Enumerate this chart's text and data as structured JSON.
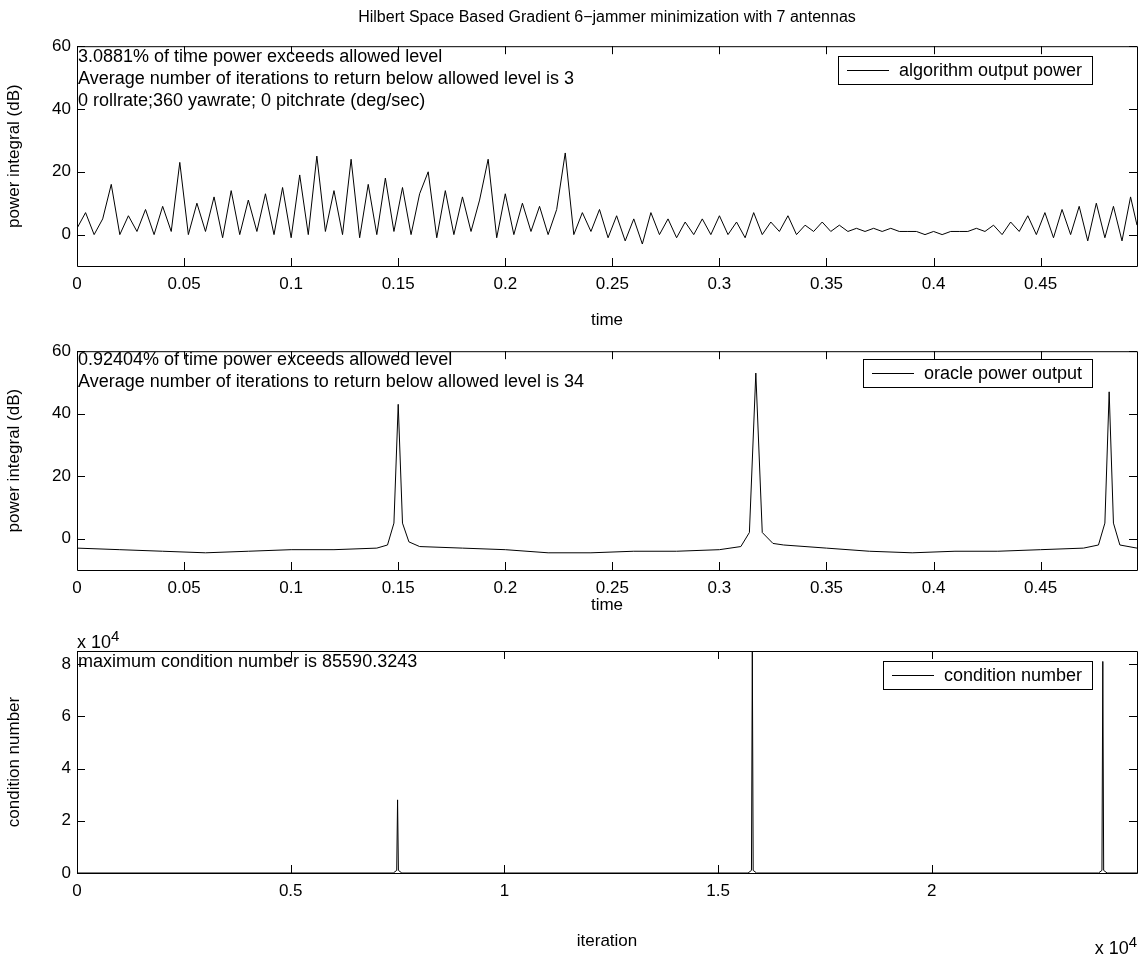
{
  "chart_data": [
    {
      "type": "line",
      "title": "Hilbert Space Based Gradient 6−jammer minimization with 7 antennas",
      "xlabel": "time",
      "ylabel": "power integral (dB)",
      "annotations": [
        "3.0881% of time power exceeds allowed level",
        "Average number of iterations to return below allowed level is 3",
        "0  rollrate;360  yawrate; 0  pitchrate (deg/sec)"
      ],
      "xlim": [
        0,
        0.495
      ],
      "xticks": [
        0,
        0.05,
        0.1,
        0.15,
        0.2,
        0.25,
        0.3,
        0.35,
        0.4,
        0.45
      ],
      "ylim": [
        -10,
        60
      ],
      "yticks": [
        0,
        20,
        40,
        60
      ],
      "legend": "top right",
      "marker": "none",
      "line_style": "solid",
      "series": [
        {
          "name": "algorithm output power",
          "color": "#000000",
          "x": [
            0,
            0.004,
            0.008,
            0.012,
            0.016,
            0.02,
            0.024,
            0.028,
            0.032,
            0.036,
            0.04,
            0.044,
            0.048,
            0.052,
            0.056,
            0.06,
            0.064,
            0.068,
            0.072,
            0.076,
            0.08,
            0.084,
            0.088,
            0.092,
            0.096,
            0.1,
            0.104,
            0.108,
            0.112,
            0.116,
            0.12,
            0.124,
            0.128,
            0.132,
            0.136,
            0.14,
            0.144,
            0.148,
            0.152,
            0.156,
            0.16,
            0.164,
            0.168,
            0.172,
            0.176,
            0.18,
            0.184,
            0.188,
            0.192,
            0.196,
            0.2,
            0.204,
            0.208,
            0.212,
            0.216,
            0.22,
            0.224,
            0.228,
            0.232,
            0.236,
            0.24,
            0.244,
            0.248,
            0.252,
            0.256,
            0.26,
            0.264,
            0.268,
            0.272,
            0.276,
            0.28,
            0.284,
            0.288,
            0.292,
            0.296,
            0.3,
            0.304,
            0.308,
            0.312,
            0.316,
            0.32,
            0.324,
            0.328,
            0.332,
            0.336,
            0.34,
            0.344,
            0.348,
            0.352,
            0.356,
            0.36,
            0.364,
            0.368,
            0.372,
            0.376,
            0.38,
            0.384,
            0.388,
            0.392,
            0.396,
            0.4,
            0.404,
            0.408,
            0.412,
            0.416,
            0.42,
            0.424,
            0.428,
            0.432,
            0.436,
            0.44,
            0.444,
            0.448,
            0.452,
            0.456,
            0.46,
            0.464,
            0.468,
            0.472,
            0.476,
            0.48,
            0.484,
            0.488,
            0.492,
            0.495
          ],
          "values": [
            2,
            7,
            0,
            5,
            16,
            0,
            6,
            1,
            8,
            0,
            9,
            1,
            23,
            0,
            10,
            1,
            12,
            -1,
            14,
            0,
            11,
            1,
            13,
            0,
            15,
            -1,
            19,
            0,
            25,
            1,
            14,
            0,
            24,
            -1,
            16,
            0,
            18,
            1,
            15,
            0,
            13,
            20,
            -1,
            14,
            0,
            12,
            1,
            11,
            24,
            -1,
            13,
            0,
            10,
            1,
            9,
            0,
            8,
            26,
            0,
            7,
            1,
            8,
            -1,
            6,
            -2,
            5,
            -3,
            7,
            0,
            5,
            -1,
            4,
            0,
            5,
            0,
            6,
            0,
            4,
            -1,
            7,
            0,
            4,
            1,
            6,
            0,
            3,
            1,
            4,
            1,
            3,
            1,
            2,
            1,
            2,
            1,
            2,
            1,
            1,
            1,
            0,
            1,
            0,
            1,
            1,
            1,
            2,
            1,
            3,
            0,
            4,
            1,
            6,
            0,
            7,
            -1,
            8,
            0,
            9,
            -2,
            10,
            -1,
            9,
            -2,
            12,
            3
          ]
        }
      ]
    },
    {
      "type": "line",
      "xlabel": "time",
      "ylabel": "power integral (dB)",
      "annotations": [
        "0.92404% of time power exceeds allowed level",
        "Average number of iterations to return below allowed level is 34"
      ],
      "xlim": [
        0,
        0.495
      ],
      "xticks": [
        0,
        0.05,
        0.1,
        0.15,
        0.2,
        0.25,
        0.3,
        0.35,
        0.4,
        0.45
      ],
      "ylim": [
        -10,
        60
      ],
      "yticks": [
        0,
        20,
        40,
        60
      ],
      "legend": "top right",
      "marker": "none",
      "line_style": "solid",
      "series": [
        {
          "name": "oracle power output",
          "color": "#000000",
          "x": [
            0,
            0.02,
            0.04,
            0.06,
            0.08,
            0.1,
            0.12,
            0.14,
            0.145,
            0.148,
            0.15,
            0.152,
            0.155,
            0.16,
            0.18,
            0.2,
            0.22,
            0.24,
            0.26,
            0.28,
            0.3,
            0.31,
            0.314,
            0.317,
            0.32,
            0.325,
            0.33,
            0.35,
            0.37,
            0.39,
            0.41,
            0.43,
            0.45,
            0.47,
            0.477,
            0.48,
            0.482,
            0.484,
            0.487,
            0.495
          ],
          "values": [
            -3,
            -3.5,
            -4,
            -4.5,
            -4,
            -3.5,
            -3.5,
            -3,
            -2,
            5,
            43,
            5,
            -1,
            -2.5,
            -3,
            -3.5,
            -4.5,
            -4.5,
            -4,
            -4,
            -3.5,
            -2.5,
            2,
            53,
            2,
            -1.5,
            -2,
            -3,
            -4,
            -4.5,
            -4,
            -4,
            -3.5,
            -3,
            -2,
            5,
            47,
            5,
            -2,
            -3
          ]
        }
      ]
    },
    {
      "type": "line",
      "xlabel": "iteration",
      "ylabel": "condition number",
      "annotations": [
        "maximum condition number is 85590.3243",
        "x 10$^{4}$",
        "x 10$^{4}$"
      ],
      "xlim": [
        0,
        2.48
      ],
      "xticks": [
        0,
        0.5,
        1,
        1.5,
        2
      ],
      "ylim": [
        0,
        8.5
      ],
      "yticks": [
        0,
        2,
        4,
        6,
        8
      ],
      "legend": "top right",
      "marker": "none",
      "line_style": "solid",
      "series": [
        {
          "name": "condition number",
          "color": "#000000",
          "x": [
            0,
            0.74,
            0.748,
            0.75,
            0.752,
            0.76,
            1.57,
            1.578,
            1.58,
            1.582,
            1.59,
            2.39,
            2.398,
            2.4,
            2.402,
            2.41,
            2.48
          ],
          "values": [
            0,
            0,
            0.1,
            2.8,
            0.1,
            0,
            0,
            0.1,
            8.5,
            0.1,
            0,
            0,
            0.1,
            8.1,
            0.1,
            0,
            0
          ]
        }
      ]
    }
  ]
}
